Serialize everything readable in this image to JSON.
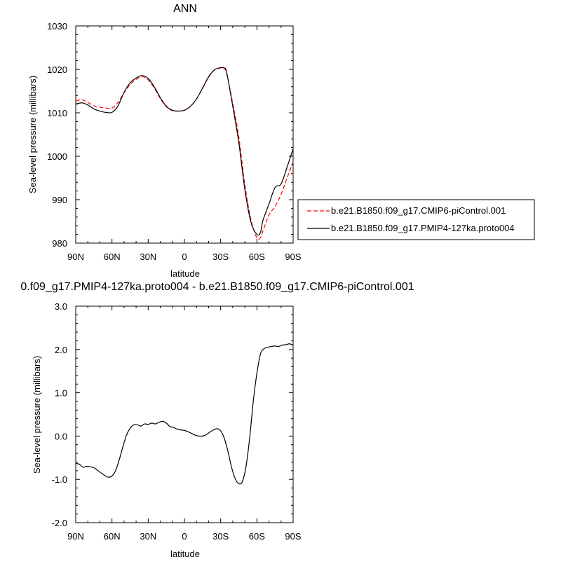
{
  "chart_data": [
    {
      "type": "line",
      "title": "ANN",
      "xlabel": "latitude",
      "ylabel": "Sea-level pressure (millibars)",
      "ylim": [
        980,
        1030
      ],
      "yticks": [
        "980",
        "990",
        "1000",
        "1010",
        "1020",
        "1030"
      ],
      "xticks": [
        "90N",
        "60N",
        "30N",
        "0",
        "30S",
        "60S",
        "90S"
      ],
      "xlim": [
        90,
        -90
      ],
      "legend_position": "right",
      "series": [
        {
          "name": "b.e21.B1850.f09_g17.CMIP6-piControl.001",
          "color": "#ff0000",
          "style": "dashed",
          "x": [
            90,
            85,
            80,
            75,
            70,
            65,
            60,
            55,
            50,
            45,
            40,
            35,
            30,
            25,
            20,
            15,
            10,
            5,
            0,
            -5,
            -10,
            -15,
            -20,
            -25,
            -30,
            -33,
            -35,
            -40,
            -45,
            -50,
            -55,
            -60,
            -63,
            -65,
            -70,
            -75,
            -80,
            -85,
            -90
          ],
          "y": [
            1012.7,
            1013.0,
            1012.4,
            1011.6,
            1011.3,
            1011.1,
            1011.1,
            1012.4,
            1014.6,
            1016.5,
            1017.7,
            1018.3,
            1017.6,
            1015.7,
            1013.3,
            1011.4,
            1010.5,
            1010.4,
            1010.6,
            1011.5,
            1013.2,
            1015.6,
            1018.2,
            1019.9,
            1020.3,
            1020.2,
            1019.0,
            1012.2,
            1004.5,
            993.5,
            985.5,
            981.2,
            981.3,
            982.8,
            986.5,
            988.4,
            991.2,
            995.0,
            998.7
          ]
        },
        {
          "name": "b.e21.B1850.f09_g17.PMIP4-127ka.proto004",
          "color": "#000000",
          "style": "solid",
          "x": [
            90,
            85,
            80,
            75,
            70,
            65,
            60,
            55,
            50,
            45,
            40,
            35,
            30,
            25,
            20,
            15,
            10,
            5,
            0,
            -5,
            -10,
            -15,
            -20,
            -25,
            -30,
            -33,
            -35,
            -40,
            -45,
            -50,
            -55,
            -60,
            -63,
            -65,
            -70,
            -75,
            -80,
            -85,
            -90
          ],
          "y": [
            1012.0,
            1012.3,
            1011.8,
            1010.9,
            1010.4,
            1010.1,
            1010.1,
            1011.6,
            1014.7,
            1016.9,
            1018.0,
            1018.6,
            1017.9,
            1016.0,
            1013.5,
            1011.5,
            1010.6,
            1010.4,
            1010.6,
            1011.5,
            1013.2,
            1015.7,
            1018.3,
            1019.9,
            1020.4,
            1020.3,
            1019.3,
            1011.5,
            1003.2,
            992.4,
            984.9,
            982.0,
            982.5,
            985.2,
            989.0,
            992.8,
            993.6,
            997.5,
            1001.7
          ]
        }
      ]
    },
    {
      "type": "line",
      "title": "0.f09_g17.PMIP4-127ka.proto004 - b.e21.B1850.f09_g17.CMIP6-piControl.001",
      "xlabel": "latitude",
      "ylabel": "Sea-level pressure (millibars)",
      "ylim": [
        -2.0,
        3.0
      ],
      "yticks": [
        "-2.0",
        "-1.0",
        "0.0",
        "1.0",
        "2.0",
        "3.0"
      ],
      "xticks": [
        "90N",
        "60N",
        "30N",
        "0",
        "30S",
        "60S",
        "90S"
      ],
      "xlim": [
        90,
        -90
      ],
      "series": [
        {
          "color": "#000000",
          "style": "solid",
          "x": [
            90,
            87,
            84,
            81,
            78,
            75,
            72,
            69,
            66,
            63,
            60,
            57,
            54,
            51,
            48,
            45,
            42,
            39,
            36,
            33,
            30,
            27,
            24,
            21,
            18,
            15,
            12,
            9,
            6,
            3,
            0,
            -3,
            -6,
            -9,
            -12,
            -15,
            -18,
            -21,
            -24,
            -27,
            -30,
            -33,
            -36,
            -39,
            -42,
            -45,
            -48,
            -51,
            -54,
            -57,
            -60,
            -63,
            -66,
            -69,
            -72,
            -75,
            -78,
            -81,
            -84,
            -87,
            -90
          ],
          "y": [
            -0.63,
            -0.65,
            -0.72,
            -0.7,
            -0.71,
            -0.73,
            -0.79,
            -0.85,
            -0.91,
            -0.95,
            -0.92,
            -0.8,
            -0.55,
            -0.25,
            0.02,
            0.18,
            0.26,
            0.26,
            0.23,
            0.28,
            0.27,
            0.3,
            0.28,
            0.32,
            0.34,
            0.3,
            0.22,
            0.2,
            0.16,
            0.14,
            0.13,
            0.1,
            0.06,
            0.02,
            0.0,
            0.0,
            0.03,
            0.09,
            0.14,
            0.17,
            0.12,
            -0.05,
            -0.35,
            -0.72,
            -0.98,
            -1.1,
            -1.05,
            -0.7,
            -0.05,
            0.8,
            1.45,
            1.9,
            2.02,
            2.05,
            2.07,
            2.08,
            2.07,
            2.1,
            2.11,
            2.13,
            2.1
          ]
        }
      ]
    }
  ]
}
